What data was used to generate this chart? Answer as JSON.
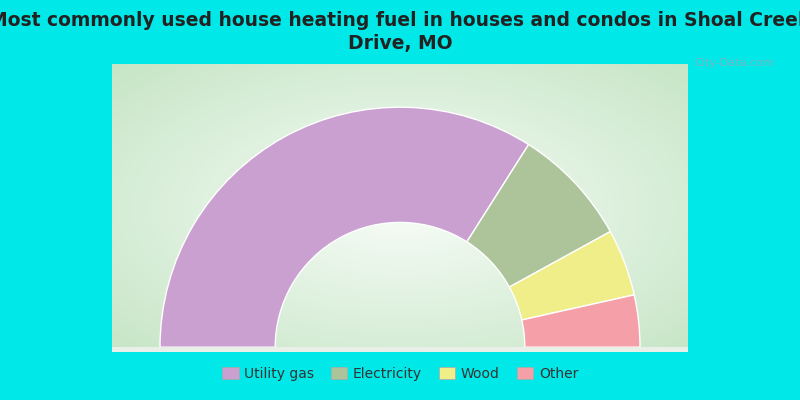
{
  "title": "Most commonly used house heating fuel in houses and condos in Shoal Creek\nDrive, MO",
  "segments": [
    {
      "label": "Utility gas",
      "value": 68.0,
      "color": "#c9a0d0"
    },
    {
      "label": "Electricity",
      "value": 16.0,
      "color": "#adc49a"
    },
    {
      "label": "Wood",
      "value": 9.0,
      "color": "#f0ee88"
    },
    {
      "label": "Other",
      "value": 7.0,
      "color": "#f5a0a8"
    }
  ],
  "background_color": "#00e8e8",
  "chart_bg_gradient": [
    "#c8e8c8",
    "#e8f0e8",
    "#f8faf8"
  ],
  "title_color": "#222222",
  "title_fontsize": 13.5,
  "legend_fontsize": 10,
  "watermark": "City-Data.com"
}
